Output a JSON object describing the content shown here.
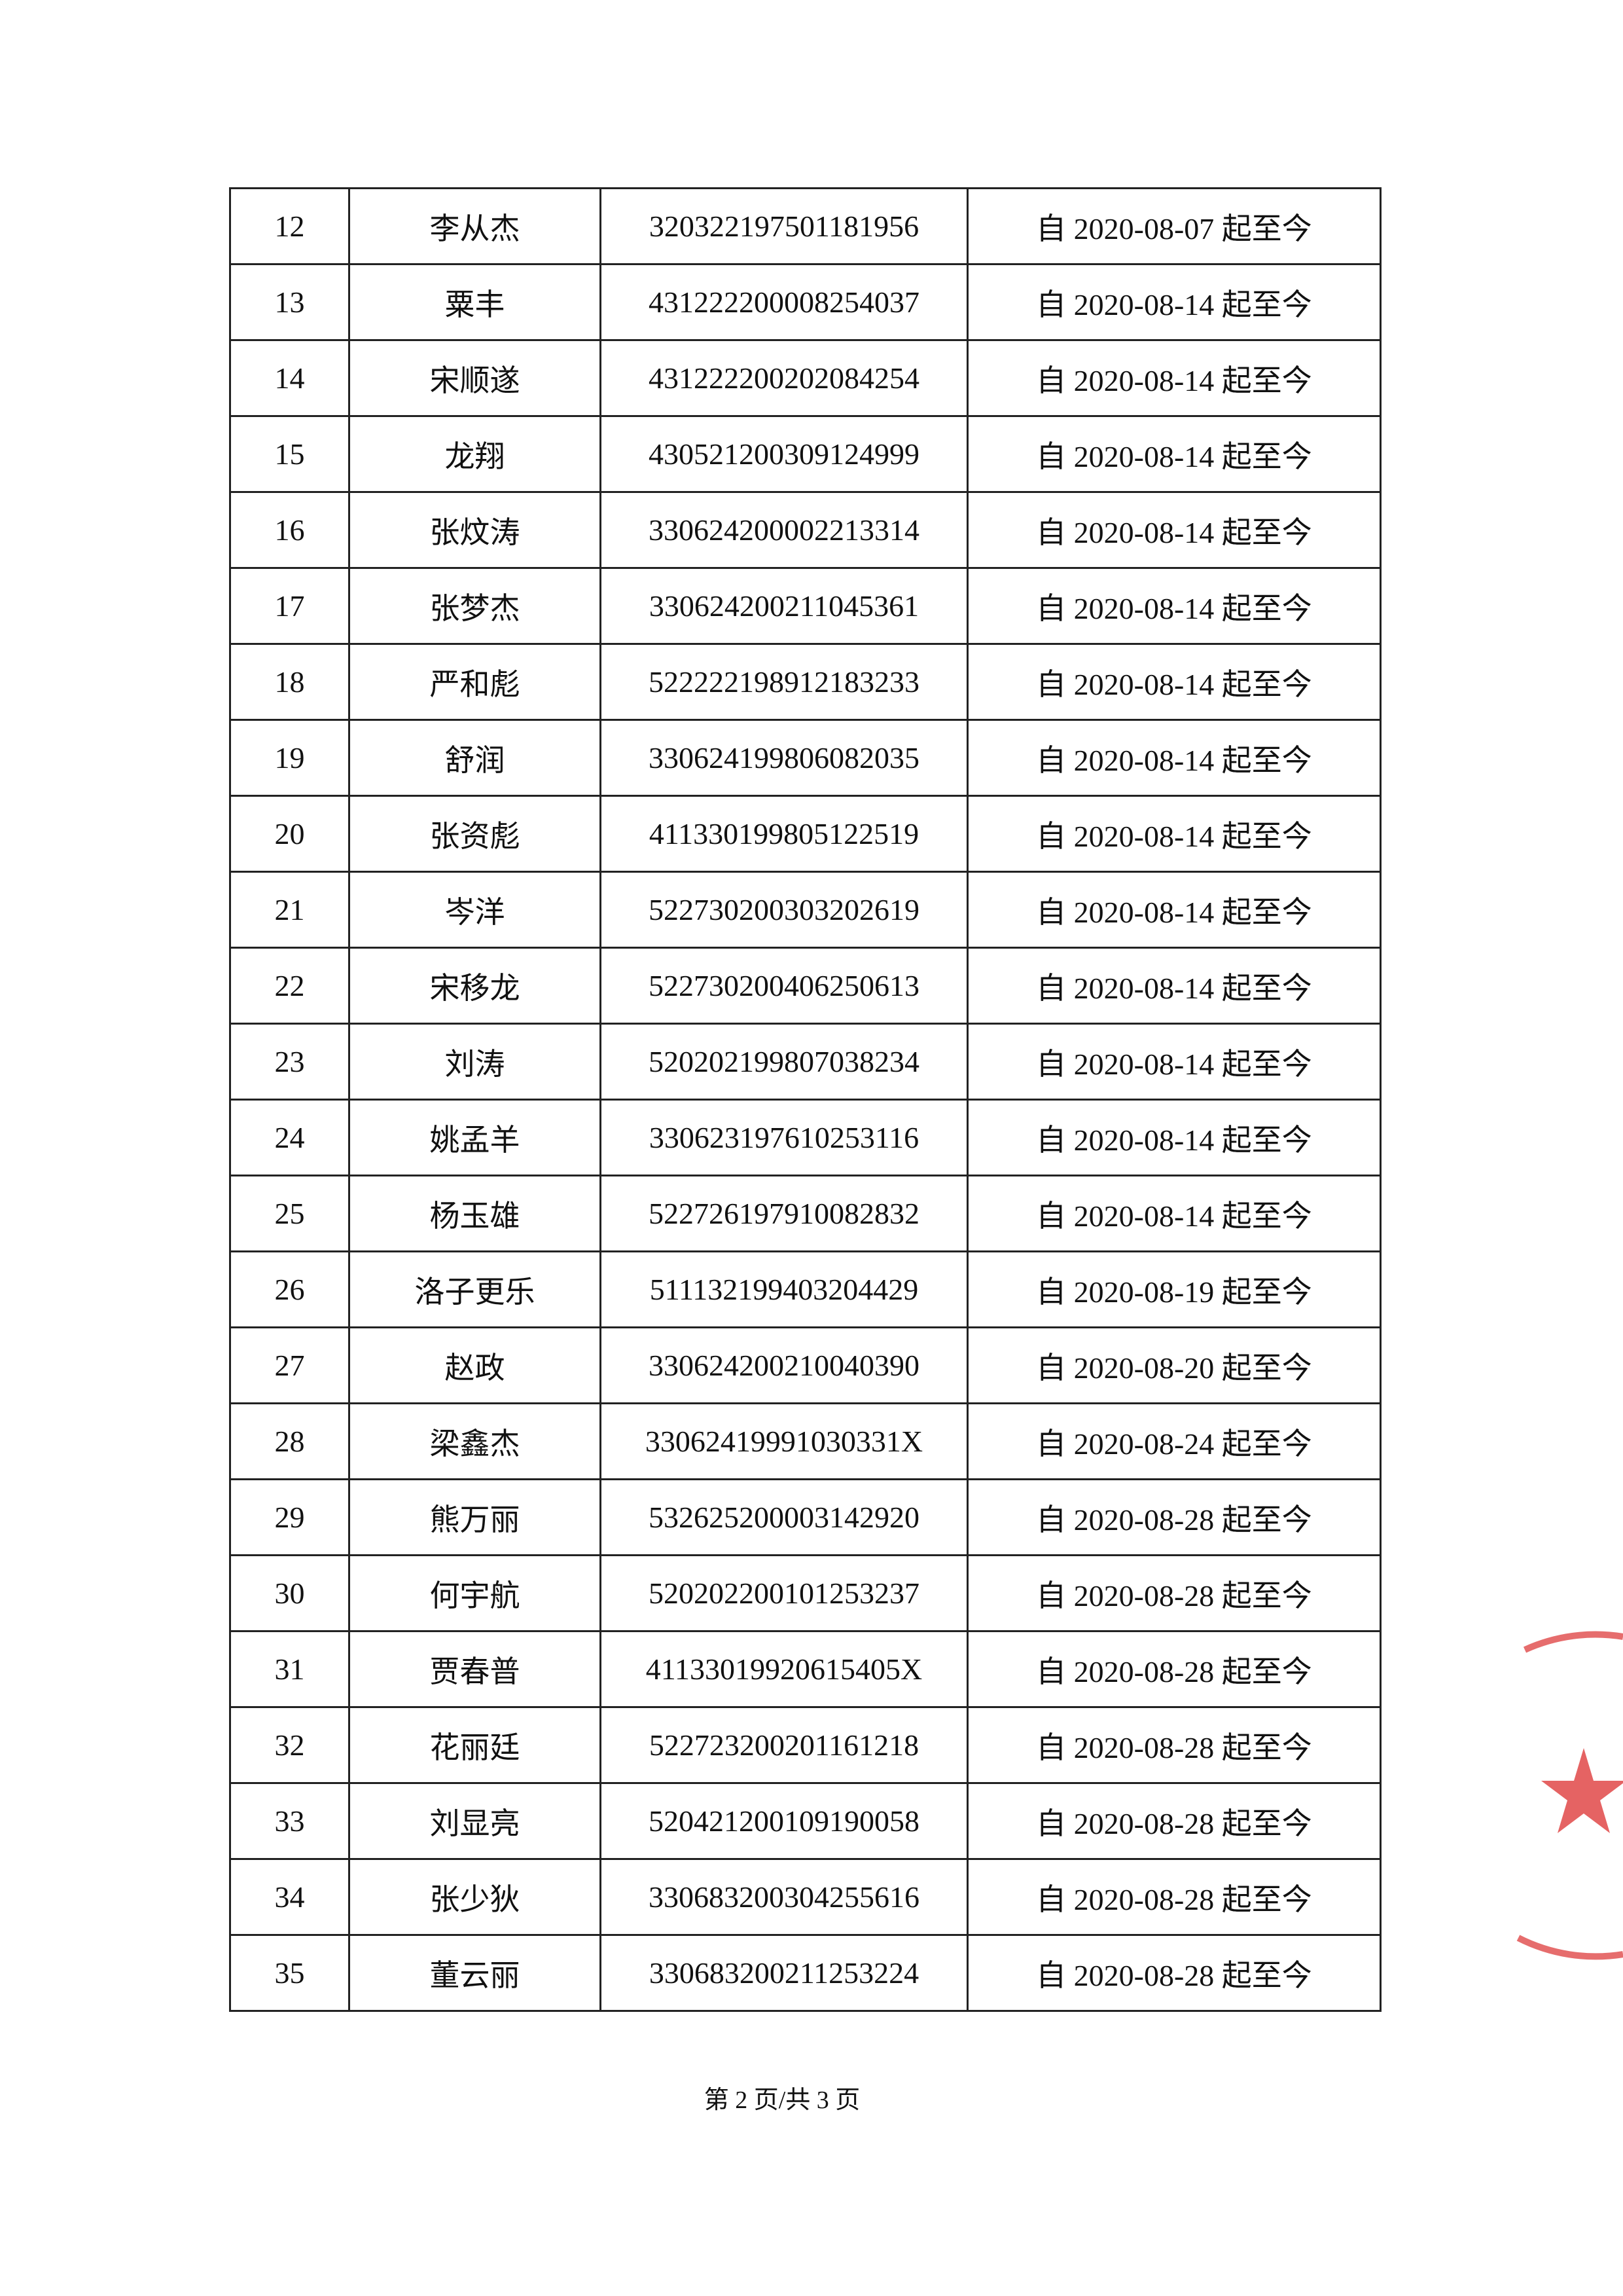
{
  "table": {
    "rows": [
      [
        "12",
        "李从杰",
        "320322197501181956",
        "自 2020-08-07 起至今"
      ],
      [
        "13",
        "粟丰",
        "431222200008254037",
        "自 2020-08-14 起至今"
      ],
      [
        "14",
        "宋顺遂",
        "431222200202084254",
        "自 2020-08-14 起至今"
      ],
      [
        "15",
        "龙翔",
        "430521200309124999",
        "自 2020-08-14 起至今"
      ],
      [
        "16",
        "张炆涛",
        "330624200002213314",
        "自 2020-08-14 起至今"
      ],
      [
        "17",
        "张梦杰",
        "330624200211045361",
        "自 2020-08-14 起至今"
      ],
      [
        "18",
        "严和彪",
        "522222198912183233",
        "自 2020-08-14 起至今"
      ],
      [
        "19",
        "舒润",
        "330624199806082035",
        "自 2020-08-14 起至今"
      ],
      [
        "20",
        "张资彪",
        "411330199805122519",
        "自 2020-08-14 起至今"
      ],
      [
        "21",
        "岑洋",
        "522730200303202619",
        "自 2020-08-14 起至今"
      ],
      [
        "22",
        "宋移龙",
        "522730200406250613",
        "自 2020-08-14 起至今"
      ],
      [
        "23",
        "刘涛",
        "520202199807038234",
        "自 2020-08-14 起至今"
      ],
      [
        "24",
        "姚孟羊",
        "330623197610253116",
        "自 2020-08-14 起至今"
      ],
      [
        "25",
        "杨玉雄",
        "522726197910082832",
        "自 2020-08-14 起至今"
      ],
      [
        "26",
        "洛子更乐",
        "511132199403204429",
        "自 2020-08-19 起至今"
      ],
      [
        "27",
        "赵政",
        "330624200210040390",
        "自 2020-08-20 起至今"
      ],
      [
        "28",
        "梁鑫杰",
        "33062419991030331X",
        "自 2020-08-24 起至今"
      ],
      [
        "29",
        "熊万丽",
        "532625200003142920",
        "自 2020-08-28 起至今"
      ],
      [
        "30",
        "何宇航",
        "520202200101253237",
        "自 2020-08-28 起至今"
      ],
      [
        "31",
        "贾春普",
        "41133019920615405X",
        "自 2020-08-28 起至今"
      ],
      [
        "32",
        "花丽廷",
        "522723200201161218",
        "自 2020-08-28 起至今"
      ],
      [
        "33",
        "刘显亮",
        "520421200109190058",
        "自 2020-08-28 起至今"
      ],
      [
        "34",
        "张少狄",
        "330683200304255616",
        "自 2020-08-28 起至今"
      ],
      [
        "35",
        "董云丽",
        "330683200211253224",
        "自 2020-08-28 起至今"
      ]
    ]
  },
  "footer": {
    "text": "第 2 页/共 3 页"
  }
}
